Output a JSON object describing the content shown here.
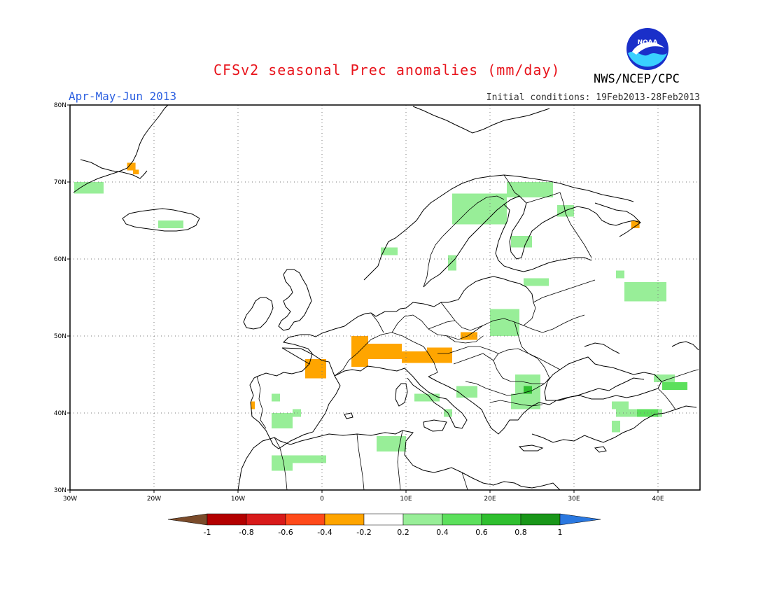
{
  "header": {
    "title": "CFSv2 seasonal Prec anomalies (mm/day)",
    "season": "Apr-May-Jun 2013",
    "initial_conditions": "Initial conditions: 19Feb2013-28Feb2013",
    "agency": "NWS/NCEP/CPC",
    "logo_text": "NOAA"
  },
  "axes": {
    "lat_labels": [
      "80N",
      "70N",
      "60N",
      "50N",
      "40N",
      "30N"
    ],
    "lon_labels": [
      "30W",
      "20W",
      "10W",
      "0",
      "10E",
      "20E",
      "30E",
      "40E"
    ]
  },
  "colorbar": {
    "labels": [
      "-1",
      "-0.8",
      "-0.6",
      "-0.4",
      "-0.2",
      "0.2",
      "0.4",
      "0.6",
      "0.8",
      "1"
    ],
    "colors": [
      "#7a4b2a",
      "#b30000",
      "#d81a1a",
      "#ff4a1a",
      "#ffa500",
      "#ffffff",
      "#98ee98",
      "#5ce05c",
      "#2fbf2f",
      "#199619",
      "#2a78e0"
    ]
  },
  "map_data": {
    "region": "Europe",
    "lon_range": [
      -30,
      45
    ],
    "lat_range": [
      30,
      80
    ],
    "anomaly_patches": [
      {
        "level": "-0.4",
        "color": "#ffa500",
        "lon": [
          -23.2,
          -22.2
        ],
        "lat": [
          71.5,
          72.5
        ]
      },
      {
        "level": "-0.4",
        "color": "#ffa500",
        "lon": [
          -22.5,
          -21.8
        ],
        "lat": [
          71.0,
          71.6
        ]
      },
      {
        "level": "-0.4",
        "color": "#ffa500",
        "lon": [
          3.5,
          5.5
        ],
        "lat": [
          46.0,
          50.0
        ]
      },
      {
        "level": "-0.4",
        "color": "#ffa500",
        "lon": [
          5.5,
          9.5
        ],
        "lat": [
          47.0,
          49.0
        ]
      },
      {
        "level": "-0.4",
        "color": "#ffa500",
        "lon": [
          9.5,
          14.5
        ],
        "lat": [
          46.5,
          48.0
        ]
      },
      {
        "level": "-0.4",
        "color": "#ffa500",
        "lon": [
          -2.0,
          0.5
        ],
        "lat": [
          44.5,
          47.0
        ]
      },
      {
        "level": "-0.4",
        "color": "#ffa500",
        "lon": [
          12.5,
          15.5
        ],
        "lat": [
          46.5,
          48.5
        ]
      },
      {
        "level": "-0.4",
        "color": "#ffa500",
        "lon": [
          16.5,
          18.5
        ],
        "lat": [
          49.5,
          50.5
        ]
      },
      {
        "level": "-0.4",
        "color": "#ffa500",
        "lon": [
          36.8,
          37.8
        ],
        "lat": [
          64.0,
          65.0
        ]
      },
      {
        "level": "-0.4",
        "color": "#ffa500",
        "lon": [
          -8.5,
          -8.0
        ],
        "lat": [
          40.5,
          41.5
        ]
      },
      {
        "level": "0.2",
        "color": "#98ee98",
        "lon": [
          -29.5,
          -26.0
        ],
        "lat": [
          68.5,
          70.0
        ]
      },
      {
        "level": "0.2",
        "color": "#98ee98",
        "lon": [
          -19.5,
          -16.5
        ],
        "lat": [
          64.0,
          65.0
        ]
      },
      {
        "level": "0.2",
        "color": "#98ee98",
        "lon": [
          15.5,
          22.0
        ],
        "lat": [
          64.5,
          68.5
        ]
      },
      {
        "level": "0.2",
        "color": "#98ee98",
        "lon": [
          22.0,
          27.5
        ],
        "lat": [
          68.0,
          70.0
        ]
      },
      {
        "level": "0.2",
        "color": "#98ee98",
        "lon": [
          28.0,
          30.0
        ],
        "lat": [
          65.5,
          67.0
        ]
      },
      {
        "level": "0.2",
        "color": "#98ee98",
        "lon": [
          22.5,
          25.0
        ],
        "lat": [
          61.5,
          63.0
        ]
      },
      {
        "level": "0.2",
        "color": "#98ee98",
        "lon": [
          7.0,
          9.0
        ],
        "lat": [
          60.5,
          61.5
        ]
      },
      {
        "level": "0.2",
        "color": "#98ee98",
        "lon": [
          15.0,
          16.0
        ],
        "lat": [
          58.5,
          60.5
        ]
      },
      {
        "level": "0.2",
        "color": "#98ee98",
        "lon": [
          24.0,
          27.0
        ],
        "lat": [
          56.5,
          57.5
        ]
      },
      {
        "level": "0.2",
        "color": "#98ee98",
        "lon": [
          36.0,
          41.0
        ],
        "lat": [
          54.5,
          57.0
        ]
      },
      {
        "level": "0.2",
        "color": "#98ee98",
        "lon": [
          35.0,
          36.0
        ],
        "lat": [
          57.5,
          58.5
        ]
      },
      {
        "level": "0.2",
        "color": "#98ee98",
        "lon": [
          20.0,
          23.5
        ],
        "lat": [
          50.0,
          53.5
        ]
      },
      {
        "level": "0.2",
        "color": "#98ee98",
        "lon": [
          23.0,
          26.0
        ],
        "lat": [
          42.0,
          45.0
        ]
      },
      {
        "level": "0.2",
        "color": "#98ee98",
        "lon": [
          22.5,
          26.0
        ],
        "lat": [
          40.5,
          42.5
        ]
      },
      {
        "level": "0.2",
        "color": "#98ee98",
        "lon": [
          16.0,
          18.5
        ],
        "lat": [
          42.0,
          43.5
        ]
      },
      {
        "level": "0.2",
        "color": "#98ee98",
        "lon": [
          11.0,
          14.0
        ],
        "lat": [
          41.5,
          42.5
        ]
      },
      {
        "level": "0.2",
        "color": "#98ee98",
        "lon": [
          14.5,
          15.5
        ],
        "lat": [
          39.5,
          40.5
        ]
      },
      {
        "level": "0.2",
        "color": "#98ee98",
        "lon": [
          -6.0,
          -3.5
        ],
        "lat": [
          38.0,
          40.0
        ]
      },
      {
        "level": "0.2",
        "color": "#98ee98",
        "lon": [
          -3.5,
          -2.5
        ],
        "lat": [
          39.5,
          40.5
        ]
      },
      {
        "level": "0.2",
        "color": "#98ee98",
        "lon": [
          -6.0,
          0.5
        ],
        "lat": [
          33.5,
          34.5
        ]
      },
      {
        "level": "0.2",
        "color": "#98ee98",
        "lon": [
          -6.0,
          -3.5
        ],
        "lat": [
          32.5,
          33.5
        ]
      },
      {
        "level": "0.2",
        "color": "#98ee98",
        "lon": [
          6.5,
          10.0
        ],
        "lat": [
          35.0,
          37.0
        ]
      },
      {
        "level": "0.2",
        "color": "#98ee98",
        "lon": [
          -6.0,
          -5.0
        ],
        "lat": [
          41.5,
          42.5
        ]
      },
      {
        "level": "0.2",
        "color": "#98ee98",
        "lon": [
          35.0,
          40.5
        ],
        "lat": [
          39.5,
          40.5
        ]
      },
      {
        "level": "0.2",
        "color": "#98ee98",
        "lon": [
          34.5,
          36.5
        ],
        "lat": [
          40.5,
          41.5
        ]
      },
      {
        "level": "0.2",
        "color": "#98ee98",
        "lon": [
          34.5,
          35.5
        ],
        "lat": [
          37.5,
          39.0
        ]
      },
      {
        "level": "0.2",
        "color": "#98ee98",
        "lon": [
          39.5,
          42.0
        ],
        "lat": [
          44.0,
          45.0
        ]
      },
      {
        "level": "0.4",
        "color": "#5ce05c",
        "lon": [
          40.5,
          43.5
        ],
        "lat": [
          43.0,
          44.0
        ]
      },
      {
        "level": "0.4",
        "color": "#5ce05c",
        "lon": [
          37.5,
          40.0
        ],
        "lat": [
          39.5,
          40.5
        ]
      },
      {
        "level": "0.6",
        "color": "#2fbf2f",
        "lon": [
          24.0,
          25.0
        ],
        "lat": [
          42.5,
          43.5
        ]
      }
    ]
  }
}
